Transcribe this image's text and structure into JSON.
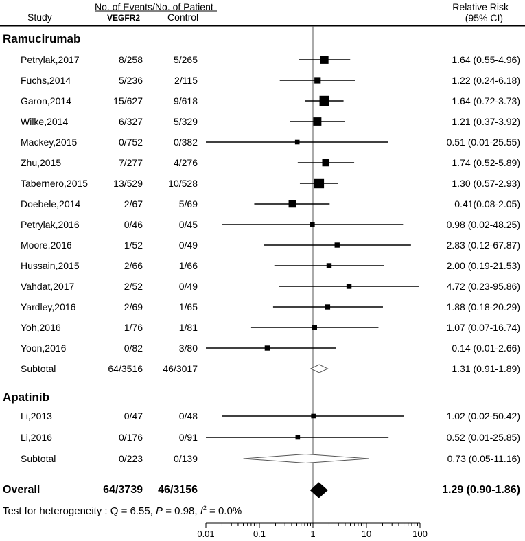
{
  "headers": {
    "study": "Study",
    "events": "No. of Events/No. of Patient",
    "vegfr2": "VEGFR2",
    "control": "Control",
    "rr_line1": "Relative Risk",
    "rr_line2": "(95% CI)"
  },
  "sections": [
    {
      "name": "Ramucirumab",
      "rows_from": 0,
      "rows_to": 15
    },
    {
      "name": "Apatinib",
      "rows_from": 16,
      "rows_to": 18
    }
  ],
  "overall_label": "Overall",
  "heterogeneity": {
    "prefix": "Test for heterogeneity : Q = 6.55, ",
    "p_symbol": "P",
    "p_value": " = 0.98, ",
    "i_symbol": "I",
    "i_sup": "2",
    "i_value": " = 0.0%"
  },
  "chart_data": {
    "type": "forest",
    "xscale": "log",
    "xlim": [
      0.01,
      100
    ],
    "xticks": [
      "0.01",
      "0.1",
      "1",
      "10",
      "100"
    ],
    "reference_line": 1,
    "rows": [
      {
        "study": "Petrylak,2017",
        "vegfr2": "8/258",
        "control": "5/265",
        "ci_text": "1.64 (0.55-4.96)",
        "rr": 1.64,
        "lo": 0.55,
        "hi": 4.96,
        "weight": 3
      },
      {
        "study": "Fuchs,2014",
        "vegfr2": "5/236",
        "control": "2/115",
        "ci_text": "1.22 (0.24-6.18)",
        "rr": 1.22,
        "lo": 0.24,
        "hi": 6.18,
        "weight": 2
      },
      {
        "study": "Garon,2014",
        "vegfr2": "15/627",
        "control": "9/618",
        "ci_text": "1.64 (0.72-3.73)",
        "rr": 1.64,
        "lo": 0.72,
        "hi": 3.73,
        "weight": 4
      },
      {
        "study": "Wilke,2014",
        "vegfr2": "6/327",
        "control": "5/329",
        "ci_text": "1.21 (0.37-3.92)",
        "rr": 1.21,
        "lo": 0.37,
        "hi": 3.92,
        "weight": 3
      },
      {
        "study": "Mackey,2015",
        "vegfr2": "0/752",
        "control": "0/382",
        "ci_text": "0.51 (0.01-25.55)",
        "rr": 0.51,
        "lo": 0.01,
        "hi": 25.55,
        "weight": 1
      },
      {
        "study": "Zhu,2015",
        "vegfr2": "7/277",
        "control": "4/276",
        "ci_text": "1.74 (0.52-5.89)",
        "rr": 1.74,
        "lo": 0.52,
        "hi": 5.89,
        "weight": 2.5
      },
      {
        "study": "Tabernero,2015",
        "vegfr2": "13/529",
        "control": "10/528",
        "ci_text": "1.30 (0.57-2.93)",
        "rr": 1.3,
        "lo": 0.57,
        "hi": 2.93,
        "weight": 4
      },
      {
        "study": "Doebele,2014",
        "vegfr2": "2/67",
        "control": "5/69",
        "ci_text": "0.41(0.08-2.05)",
        "rr": 0.41,
        "lo": 0.08,
        "hi": 2.05,
        "weight": 2.5
      },
      {
        "study": "Petrylak,2016",
        "vegfr2": "0/46",
        "control": "0/45",
        "ci_text": "0.98 (0.02-48.25)",
        "rr": 0.98,
        "lo": 0.02,
        "hi": 48.25,
        "weight": 1
      },
      {
        "study": "Moore,2016",
        "vegfr2": "1/52",
        "control": "0/49",
        "ci_text": "2.83 (0.12-67.87)",
        "rr": 2.83,
        "lo": 0.12,
        "hi": 67.87,
        "weight": 1.3
      },
      {
        "study": "Hussain,2015",
        "vegfr2": "2/66",
        "control": "1/66",
        "ci_text": "2.00 (0.19-21.53)",
        "rr": 2.0,
        "lo": 0.19,
        "hi": 21.53,
        "weight": 1.3
      },
      {
        "study": "Vahdat,2017",
        "vegfr2": "2/52",
        "control": "0/49",
        "ci_text": "4.72 (0.23-95.86)",
        "rr": 4.72,
        "lo": 0.23,
        "hi": 95.86,
        "weight": 1.3
      },
      {
        "study": "Yardley,2016",
        "vegfr2": "2/69",
        "control": "1/65",
        "ci_text": "1.88 (0.18-20.29)",
        "rr": 1.88,
        "lo": 0.18,
        "hi": 20.29,
        "weight": 1.3
      },
      {
        "study": "Yoh,2016",
        "vegfr2": "1/76",
        "control": "1/81",
        "ci_text": "1.07 (0.07-16.74)",
        "rr": 1.07,
        "lo": 0.07,
        "hi": 16.74,
        "weight": 1.3
      },
      {
        "study": "Yoon,2016",
        "vegfr2": "0/82",
        "control": "3/80",
        "ci_text": "0.14 (0.01-2.66)",
        "rr": 0.14,
        "lo": 0.01,
        "hi": 2.66,
        "weight": 1.3
      },
      {
        "study": "Subtotal",
        "vegfr2": "64/3516",
        "control": "46/3017",
        "ci_text": "1.31 (0.91-1.89)",
        "rr": 1.31,
        "lo": 0.91,
        "hi": 1.89,
        "kind": "subtotal"
      },
      {
        "study": "Li,2013",
        "vegfr2": "0/47",
        "control": "0/48",
        "ci_text": "1.02 (0.02-50.42)",
        "rr": 1.02,
        "lo": 0.02,
        "hi": 50.42,
        "weight": 1
      },
      {
        "study": "Li,2016",
        "vegfr2": "0/176",
        "control": "0/91",
        "ci_text": "0.52 (0.01-25.85)",
        "rr": 0.52,
        "lo": 0.01,
        "hi": 25.85,
        "weight": 1
      },
      {
        "study": "Subtotal",
        "vegfr2": "0/223",
        "control": "0/139",
        "ci_text": "0.73 (0.05-11.16)",
        "rr": 0.73,
        "lo": 0.05,
        "hi": 11.16,
        "kind": "subtotal"
      },
      {
        "study": "Overall",
        "vegfr2": "64/3739",
        "control": "46/3156",
        "ci_text": "1.29 (0.90-1.86)",
        "rr": 1.29,
        "lo": 0.9,
        "hi": 1.86,
        "kind": "overall"
      }
    ]
  }
}
